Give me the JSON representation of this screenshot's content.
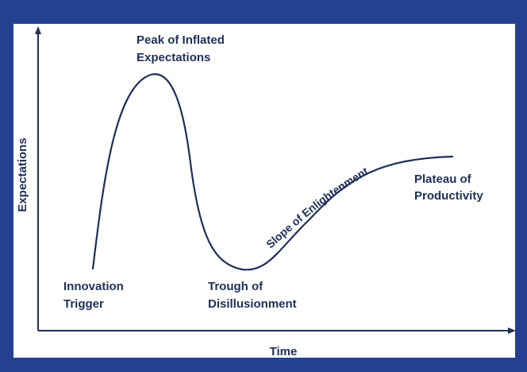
{
  "colors": {
    "frame": "#24408f",
    "background": "#ffffff",
    "ink": "#1f2f57"
  },
  "axes": {
    "x_label": "Time",
    "y_label": "Expectations"
  },
  "phases": {
    "innovation_trigger": [
      "Innovation",
      "Trigger"
    ],
    "peak": [
      "Peak of Inflated",
      "Expectations"
    ],
    "trough": [
      "Trough of",
      "Disillusionment"
    ],
    "slope": "Slope of Enlightenment",
    "plateau": [
      "Plateau of",
      "Productivity"
    ]
  }
}
